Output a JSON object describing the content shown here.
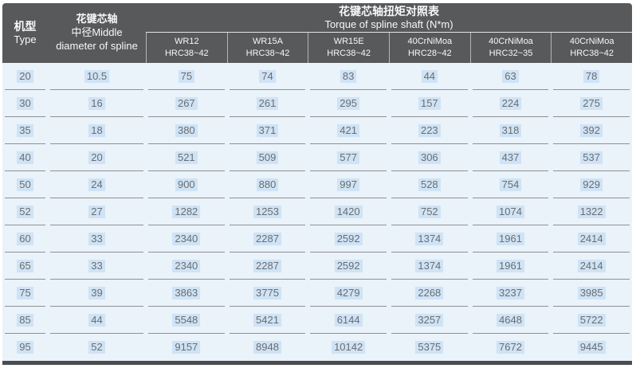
{
  "table": {
    "col1_header": {
      "zh": "机型",
      "en": "Type"
    },
    "col2_header": {
      "line1": "花键芯轴",
      "line2": "中径Middle",
      "line3": "diameter of spline"
    },
    "title": {
      "zh": "花键芯轴扭矩对照表",
      "en": "Torque of spline shaft (N*m)"
    },
    "torque_columns": [
      {
        "name": "WR12",
        "hrc": "HRC38~42"
      },
      {
        "name": "WR15A",
        "hrc": "HRC38~42"
      },
      {
        "name": "WR15E",
        "hrc": "HRC38~42"
      },
      {
        "name": "40CrNiMoa",
        "hrc": "HRC28~42"
      },
      {
        "name": "40CrNiMoa",
        "hrc": "HRC32~35"
      },
      {
        "name": "40CrNiMoa",
        "hrc": "HRC38~42"
      }
    ],
    "rows": [
      {
        "type": "20",
        "diameter": "10.5",
        "values": [
          "75",
          "74",
          "83",
          "44",
          "63",
          "78"
        ]
      },
      {
        "type": "30",
        "diameter": "16",
        "values": [
          "267",
          "261",
          "295",
          "157",
          "224",
          "275"
        ]
      },
      {
        "type": "35",
        "diameter": "18",
        "values": [
          "380",
          "371",
          "421",
          "223",
          "318",
          "392"
        ]
      },
      {
        "type": "40",
        "diameter": "20",
        "values": [
          "521",
          "509",
          "577",
          "306",
          "437",
          "537"
        ]
      },
      {
        "type": "50",
        "diameter": "24",
        "values": [
          "900",
          "880",
          "997",
          "528",
          "754",
          "929"
        ]
      },
      {
        "type": "52",
        "diameter": "27",
        "values": [
          "1282",
          "1253",
          "1420",
          "752",
          "1074",
          "1322"
        ]
      },
      {
        "type": "60",
        "diameter": "33",
        "values": [
          "2340",
          "2287",
          "2592",
          "1374",
          "1961",
          "2414"
        ]
      },
      {
        "type": "65",
        "diameter": "33",
        "values": [
          "2340",
          "2287",
          "2592",
          "1374",
          "1961",
          "2414"
        ]
      },
      {
        "type": "75",
        "diameter": "39",
        "values": [
          "3863",
          "3775",
          "4279",
          "2268",
          "3237",
          "3985"
        ]
      },
      {
        "type": "85",
        "diameter": "44",
        "values": [
          "5548",
          "5421",
          "6144",
          "3257",
          "4648",
          "5722"
        ]
      },
      {
        "type": "95",
        "diameter": "52",
        "values": [
          "9157",
          "8948",
          "10142",
          "5375",
          "7672",
          "9445"
        ]
      }
    ]
  },
  "colors": {
    "header_bg": "#58595b",
    "body_bg": "#eaf2fa",
    "value_highlight": "#cfe3f5",
    "value_text": "#6b6d70",
    "separator": "#8f9194",
    "bottom_bar": "#4b4c4e"
  },
  "chart_data": {
    "type": "table",
    "title": "花键芯轴扭矩对照表 / Torque of spline shaft (N*m)",
    "columns": [
      "机型 Type",
      "花键芯轴中径 Middle diameter of spline",
      "WR12 HRC38~42",
      "WR15A HRC38~42",
      "WR15E HRC38~42",
      "40CrNiMoa HRC28~42",
      "40CrNiMoa HRC32~35",
      "40CrNiMoa HRC38~42"
    ],
    "rows": [
      [
        20,
        10.5,
        75,
        74,
        83,
        44,
        63,
        78
      ],
      [
        30,
        16,
        267,
        261,
        295,
        157,
        224,
        275
      ],
      [
        35,
        18,
        380,
        371,
        421,
        223,
        318,
        392
      ],
      [
        40,
        20,
        521,
        509,
        577,
        306,
        437,
        537
      ],
      [
        50,
        24,
        900,
        880,
        997,
        528,
        754,
        929
      ],
      [
        52,
        27,
        1282,
        1253,
        1420,
        752,
        1074,
        1322
      ],
      [
        60,
        33,
        2340,
        2287,
        2592,
        1374,
        1961,
        2414
      ],
      [
        65,
        33,
        2340,
        2287,
        2592,
        1374,
        1961,
        2414
      ],
      [
        75,
        39,
        3863,
        3775,
        4279,
        2268,
        3237,
        3985
      ],
      [
        85,
        44,
        5548,
        5421,
        6144,
        3257,
        4648,
        5722
      ],
      [
        95,
        52,
        9157,
        8948,
        10142,
        5375,
        7672,
        9445
      ]
    ]
  }
}
